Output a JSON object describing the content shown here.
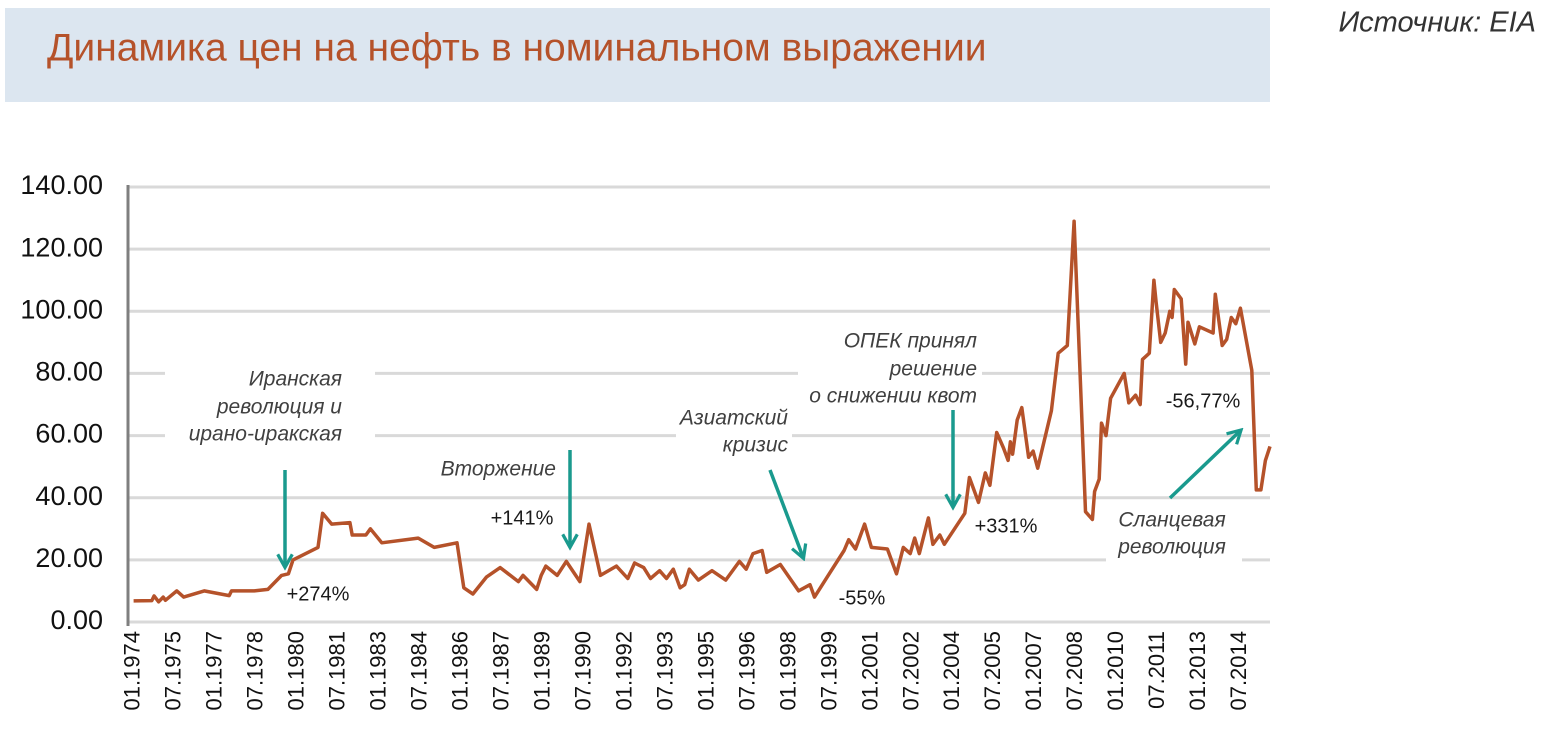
{
  "chart_data": {
    "type": "line",
    "title": "Динамика цен на нефть в номинальном выражении",
    "source": "Источник:  EIA",
    "color": "#b5522a",
    "grid": true,
    "ylim": [
      0,
      140
    ],
    "yticks": [
      {
        "value": 0,
        "label": "0.00"
      },
      {
        "value": 20,
        "label": "20.00"
      },
      {
        "value": 40,
        "label": "40.00"
      },
      {
        "value": 60,
        "label": "60.00"
      },
      {
        "value": 80,
        "label": "80.00"
      },
      {
        "value": 100,
        "label": "100.00"
      },
      {
        "value": 120,
        "label": "120.00"
      },
      {
        "value": 140,
        "label": "140.00"
      }
    ],
    "xlim": [
      "11.1973",
      "08.2015"
    ],
    "xticks": [
      "01.1974",
      "07.1975",
      "01.1977",
      "07.1978",
      "01.1980",
      "07.1981",
      "01.1983",
      "07.1984",
      "01.1986",
      "07.1987",
      "01.1989",
      "07.1990",
      "01.1992",
      "07.1993",
      "01.1995",
      "07.1996",
      "01.1998",
      "07.1999",
      "01.2001",
      "07.2002",
      "01.2004",
      "07.2005",
      "01.2007",
      "07.2008",
      "01.2010",
      "07.2011",
      "01.2013",
      "07.2014"
    ],
    "x": [
      "01.1974",
      "09.1974",
      "10.1974",
      "12.1974",
      "02.1975",
      "03.1975",
      "08.1975",
      "11.1975",
      "08.1976",
      "07.1977",
      "08.1977",
      "06.1978",
      "12.1978",
      "06.1979",
      "09.1979",
      "11.1979",
      "10.1980",
      "12.1980",
      "04.1981",
      "12.1981",
      "01.1982",
      "07.1982",
      "09.1982",
      "02.1983",
      "06.1984",
      "01.1985",
      "11.1985",
      "02.1986",
      "06.1986",
      "12.1986",
      "06.1987",
      "02.1988",
      "04.1988",
      "10.1988",
      "12.1988",
      "02.1989",
      "07.1989",
      "11.1989",
      "05.1990",
      "09.1990",
      "02.1991",
      "09.1991",
      "02.1992",
      "05.1992",
      "09.1992",
      "12.1992",
      "04.1993",
      "07.1993",
      "10.1993",
      "01.1994",
      "03.1994",
      "05.1994",
      "09.1994",
      "03.1995",
      "09.1995",
      "03.1996",
      "06.1996",
      "09.1996",
      "01.1997",
      "03.1997",
      "09.1997",
      "05.1998",
      "10.1998",
      "12.1998",
      "06.1999",
      "01.2000",
      "03.2000",
      "06.2000",
      "10.2000",
      "01.2001",
      "08.2001",
      "12.2001",
      "03.2002",
      "06.2002",
      "08.2002",
      "10.2002",
      "02.2003",
      "04.2003",
      "07.2003",
      "09.2003",
      "06.2004",
      "08.2004",
      "12.2004",
      "03.2005",
      "05.2005",
      "08.2005",
      "11.2005",
      "01.2006",
      "02.2006",
      "03.2006",
      "05.2006",
      "07.2006",
      "10.2006",
      "12.2006",
      "02.2007",
      "08.2007",
      "11.2007",
      "03.2008",
      "06.2008",
      "11.2008",
      "02.2009",
      "03.2009",
      "05.2009",
      "06.2009",
      "08.2009",
      "10.2009",
      "04.2010",
      "06.2010",
      "09.2010",
      "11.2010",
      "12.2010",
      "03.2011",
      "05.2011",
      "06.2011",
      "08.2011",
      "10.2011",
      "12.2011",
      "01.2012",
      "02.2012",
      "05.2012",
      "07.2012",
      "08.2012",
      "11.2012",
      "01.2013",
      "07.2013",
      "08.2013",
      "11.2013",
      "01.2014",
      "03.2014",
      "05.2014",
      "07.2014",
      "12.2014",
      "02.2015",
      "04.2015",
      "06.2015",
      "08.2015"
    ],
    "values": [
      6.8,
      6.9,
      8.4,
      6.5,
      8,
      7,
      10,
      8,
      10,
      8.5,
      10,
      10,
      10.5,
      15,
      15.5,
      20,
      24,
      35,
      31.5,
      32,
      28,
      28,
      30,
      25.5,
      27,
      24,
      25.5,
      11,
      9,
      14.5,
      17.5,
      13,
      15,
      10.5,
      15,
      18,
      15,
      19.5,
      13,
      31.5,
      15,
      18,
      14,
      19,
      17.5,
      14,
      16.5,
      14,
      17,
      11,
      12,
      17,
      13.5,
      16.5,
      13.5,
      19.5,
      17,
      22,
      23,
      16,
      18.5,
      10,
      12,
      8,
      15,
      23,
      26.5,
      23.5,
      31.5,
      24,
      23.5,
      15.5,
      24,
      22,
      27,
      22,
      33.5,
      25,
      28,
      25,
      35,
      46.5,
      38.5,
      48,
      44,
      61,
      56,
      52,
      58,
      54,
      65,
      69,
      53,
      55,
      49.5,
      68,
      86.5,
      89,
      129,
      35.5,
      33,
      42,
      46,
      64,
      60,
      72,
      80,
      70.5,
      73,
      70,
      84.5,
      86.5,
      110,
      103,
      90,
      93,
      100,
      98,
      107,
      104,
      83,
      96.5,
      89.5,
      95,
      93,
      105.5,
      89,
      91,
      98,
      96,
      101,
      81,
      42.5,
      42.5,
      52,
      56.5
    ],
    "annotations": [
      {
        "lines": [
          "Иранская",
          "революция и",
          "ирано-иракская"
        ]
      },
      {
        "lines": [
          "+274%"
        ]
      },
      {
        "lines": [
          "Вторжение"
        ]
      },
      {
        "lines": [
          "+141%"
        ]
      },
      {
        "lines": [
          "Азиатский",
          "кризис"
        ]
      },
      {
        "lines": [
          "-55%"
        ]
      },
      {
        "lines": [
          "ОПЕК принял",
          "решение",
          "о снижении квот"
        ]
      },
      {
        "lines": [
          "+331%"
        ]
      },
      {
        "lines": [
          "-56,77%"
        ]
      },
      {
        "lines": [
          "Сланцевая",
          "революция"
        ]
      }
    ]
  }
}
